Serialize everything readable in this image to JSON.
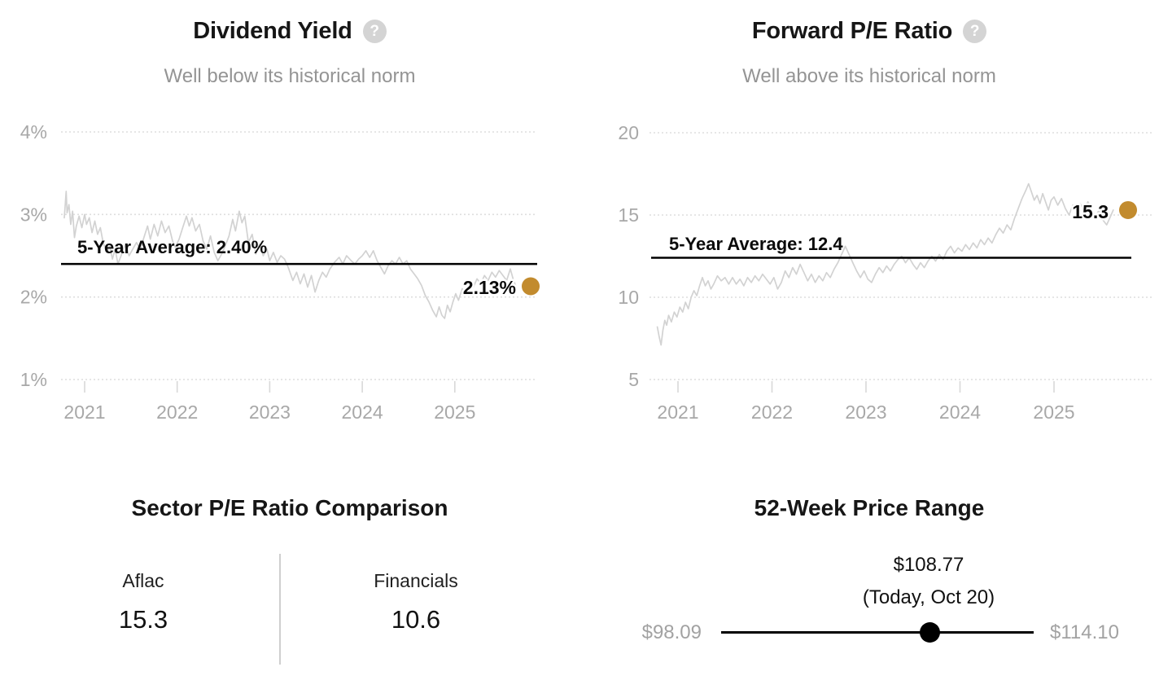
{
  "icons": {
    "help": "?"
  },
  "colors": {
    "background": "#ffffff",
    "accent_gold": "#C28B2E",
    "series_line": "#d2d2d2",
    "grid_line": "#dedede",
    "tick_mark": "#d8d8d8",
    "average_line": "#000000",
    "axis_text": "#a8a8a8",
    "muted_text": "#949494"
  },
  "chart_data": [
    {
      "type": "line",
      "title": "Dividend Yield",
      "subtitle": "Well below its historical norm",
      "ylabel": "Dividend Yield (%)",
      "ylim": [
        1,
        4
      ],
      "grid": "dotted-horizontal",
      "y_ticks": [
        {
          "label": "4%",
          "value": 4
        },
        {
          "label": "3%",
          "value": 3
        },
        {
          "label": "2%",
          "value": 2
        },
        {
          "label": "1%",
          "value": 1
        }
      ],
      "x_ticks": [
        {
          "label": "2021",
          "value": 2021
        },
        {
          "label": "2022",
          "value": 2022
        },
        {
          "label": "2023",
          "value": 2023
        },
        {
          "label": "2024",
          "value": 2024
        },
        {
          "label": "2025",
          "value": 2025
        }
      ],
      "average": {
        "label": "5-Year Average: 2.40%",
        "value": 2.4
      },
      "current": {
        "label": "2.13%",
        "value": 2.13
      },
      "points": [
        [
          2020.78,
          2.96
        ],
        [
          2020.8,
          3.28
        ],
        [
          2020.81,
          3.02
        ],
        [
          2020.83,
          3.12
        ],
        [
          2020.85,
          2.88
        ],
        [
          2020.87,
          3.04
        ],
        [
          2020.89,
          2.72
        ],
        [
          2020.91,
          2.86
        ],
        [
          2020.94,
          2.98
        ],
        [
          2020.97,
          2.84
        ],
        [
          2021.0,
          3.0
        ],
        [
          2021.02,
          2.88
        ],
        [
          2021.05,
          2.96
        ],
        [
          2021.08,
          2.78
        ],
        [
          2021.11,
          2.92
        ],
        [
          2021.14,
          2.76
        ],
        [
          2021.17,
          2.84
        ],
        [
          2021.2,
          2.66
        ],
        [
          2021.24,
          2.54
        ],
        [
          2021.27,
          2.62
        ],
        [
          2021.3,
          2.46
        ],
        [
          2021.33,
          2.58
        ],
        [
          2021.36,
          2.4
        ],
        [
          2021.4,
          2.52
        ],
        [
          2021.44,
          2.64
        ],
        [
          2021.48,
          2.5
        ],
        [
          2021.52,
          2.58
        ],
        [
          2021.56,
          2.66
        ],
        [
          2021.6,
          2.58
        ],
        [
          2021.64,
          2.72
        ],
        [
          2021.68,
          2.86
        ],
        [
          2021.71,
          2.7
        ],
        [
          2021.75,
          2.88
        ],
        [
          2021.79,
          2.74
        ],
        [
          2021.83,
          2.92
        ],
        [
          2021.87,
          2.78
        ],
        [
          2021.91,
          2.86
        ],
        [
          2021.95,
          2.68
        ],
        [
          2021.98,
          2.6
        ],
        [
          2022.02,
          2.7
        ],
        [
          2022.06,
          2.84
        ],
        [
          2022.1,
          2.98
        ],
        [
          2022.13,
          2.86
        ],
        [
          2022.16,
          2.96
        ],
        [
          2022.2,
          2.8
        ],
        [
          2022.24,
          2.88
        ],
        [
          2022.28,
          2.68
        ],
        [
          2022.32,
          2.58
        ],
        [
          2022.36,
          2.74
        ],
        [
          2022.4,
          2.54
        ],
        [
          2022.44,
          2.44
        ],
        [
          2022.48,
          2.52
        ],
        [
          2022.52,
          2.62
        ],
        [
          2022.56,
          2.74
        ],
        [
          2022.6,
          2.94
        ],
        [
          2022.63,
          2.8
        ],
        [
          2022.67,
          3.04
        ],
        [
          2022.7,
          2.9
        ],
        [
          2022.73,
          2.98
        ],
        [
          2022.77,
          2.66
        ],
        [
          2022.81,
          2.76
        ],
        [
          2022.85,
          2.52
        ],
        [
          2022.89,
          2.64
        ],
        [
          2022.93,
          2.5
        ],
        [
          2022.97,
          2.58
        ],
        [
          2023.0,
          2.44
        ],
        [
          2023.04,
          2.54
        ],
        [
          2023.08,
          2.42
        ],
        [
          2023.12,
          2.5
        ],
        [
          2023.16,
          2.46
        ],
        [
          2023.2,
          2.36
        ],
        [
          2023.25,
          2.2
        ],
        [
          2023.29,
          2.3
        ],
        [
          2023.33,
          2.16
        ],
        [
          2023.37,
          2.28
        ],
        [
          2023.41,
          2.12
        ],
        [
          2023.45,
          2.26
        ],
        [
          2023.49,
          2.06
        ],
        [
          2023.53,
          2.2
        ],
        [
          2023.57,
          2.3
        ],
        [
          2023.61,
          2.24
        ],
        [
          2023.65,
          2.34
        ],
        [
          2023.7,
          2.42
        ],
        [
          2023.75,
          2.48
        ],
        [
          2023.79,
          2.4
        ],
        [
          2023.83,
          2.5
        ],
        [
          2023.88,
          2.44
        ],
        [
          2023.92,
          2.4
        ],
        [
          2023.96,
          2.46
        ],
        [
          2024.0,
          2.5
        ],
        [
          2024.04,
          2.56
        ],
        [
          2024.08,
          2.48
        ],
        [
          2024.12,
          2.56
        ],
        [
          2024.16,
          2.44
        ],
        [
          2024.2,
          2.36
        ],
        [
          2024.24,
          2.28
        ],
        [
          2024.28,
          2.38
        ],
        [
          2024.32,
          2.44
        ],
        [
          2024.36,
          2.4
        ],
        [
          2024.4,
          2.48
        ],
        [
          2024.44,
          2.4
        ],
        [
          2024.48,
          2.44
        ],
        [
          2024.52,
          2.34
        ],
        [
          2024.56,
          2.28
        ],
        [
          2024.6,
          2.22
        ],
        [
          2024.64,
          2.14
        ],
        [
          2024.68,
          2.02
        ],
        [
          2024.72,
          1.94
        ],
        [
          2024.76,
          1.84
        ],
        [
          2024.8,
          1.76
        ],
        [
          2024.83,
          1.88
        ],
        [
          2024.86,
          1.78
        ],
        [
          2024.89,
          1.74
        ],
        [
          2024.92,
          1.9
        ],
        [
          2024.95,
          1.82
        ],
        [
          2024.98,
          1.94
        ],
        [
          2025.01,
          2.04
        ],
        [
          2025.04,
          1.96
        ],
        [
          2025.08,
          2.1
        ],
        [
          2025.12,
          2.04
        ],
        [
          2025.16,
          2.18
        ],
        [
          2025.2,
          2.12
        ],
        [
          2025.24,
          2.22
        ],
        [
          2025.28,
          2.16
        ],
        [
          2025.32,
          2.26
        ],
        [
          2025.36,
          2.2
        ],
        [
          2025.4,
          2.3
        ],
        [
          2025.44,
          2.24
        ],
        [
          2025.48,
          2.32
        ],
        [
          2025.52,
          2.26
        ],
        [
          2025.56,
          2.2
        ],
        [
          2025.6,
          2.34
        ],
        [
          2025.63,
          2.22
        ],
        [
          2025.66,
          2.13
        ]
      ]
    },
    {
      "type": "line",
      "title": "Forward P/E Ratio",
      "subtitle": "Well above its historical norm",
      "ylabel": "Forward P/E Ratio",
      "ylim": [
        5,
        20
      ],
      "grid": "dotted-horizontal",
      "y_ticks": [
        {
          "label": "20",
          "value": 20
        },
        {
          "label": "15",
          "value": 15
        },
        {
          "label": "10",
          "value": 10
        },
        {
          "label": "5",
          "value": 5
        }
      ],
      "x_ticks": [
        {
          "label": "2021",
          "value": 2021
        },
        {
          "label": "2022",
          "value": 2022
        },
        {
          "label": "2023",
          "value": 2023
        },
        {
          "label": "2024",
          "value": 2024
        },
        {
          "label": "2025",
          "value": 2025
        }
      ],
      "average": {
        "label": "5-Year Average: 12.4",
        "value": 12.4
      },
      "current": {
        "label": "15.3",
        "value": 15.3
      },
      "points": [
        [
          2020.78,
          8.2
        ],
        [
          2020.8,
          7.6
        ],
        [
          2020.82,
          7.1
        ],
        [
          2020.84,
          8.0
        ],
        [
          2020.86,
          8.6
        ],
        [
          2020.88,
          8.3
        ],
        [
          2020.9,
          8.9
        ],
        [
          2020.93,
          8.5
        ],
        [
          2020.96,
          9.1
        ],
        [
          2020.99,
          8.8
        ],
        [
          2021.02,
          9.4
        ],
        [
          2021.05,
          9.1
        ],
        [
          2021.08,
          9.7
        ],
        [
          2021.11,
          9.3
        ],
        [
          2021.14,
          10.0
        ],
        [
          2021.17,
          10.4
        ],
        [
          2021.2,
          10.1
        ],
        [
          2021.23,
          10.7
        ],
        [
          2021.26,
          11.2
        ],
        [
          2021.29,
          10.7
        ],
        [
          2021.32,
          11.0
        ],
        [
          2021.35,
          10.5
        ],
        [
          2021.38,
          10.8
        ],
        [
          2021.42,
          11.3
        ],
        [
          2021.46,
          11.0
        ],
        [
          2021.5,
          11.2
        ],
        [
          2021.54,
          10.8
        ],
        [
          2021.58,
          11.2
        ],
        [
          2021.62,
          10.8
        ],
        [
          2021.66,
          11.1
        ],
        [
          2021.7,
          10.7
        ],
        [
          2021.74,
          11.2
        ],
        [
          2021.78,
          10.9
        ],
        [
          2021.82,
          11.3
        ],
        [
          2021.86,
          11.0
        ],
        [
          2021.9,
          11.4
        ],
        [
          2021.94,
          11.1
        ],
        [
          2021.98,
          10.8
        ],
        [
          2022.02,
          11.2
        ],
        [
          2022.06,
          10.5
        ],
        [
          2022.1,
          10.9
        ],
        [
          2022.14,
          11.6
        ],
        [
          2022.18,
          11.2
        ],
        [
          2022.22,
          11.8
        ],
        [
          2022.26,
          11.4
        ],
        [
          2022.3,
          12.0
        ],
        [
          2022.34,
          11.5
        ],
        [
          2022.38,
          11.0
        ],
        [
          2022.42,
          11.4
        ],
        [
          2022.46,
          10.9
        ],
        [
          2022.5,
          11.3
        ],
        [
          2022.54,
          11.0
        ],
        [
          2022.58,
          11.5
        ],
        [
          2022.62,
          11.2
        ],
        [
          2022.66,
          11.7
        ],
        [
          2022.7,
          12.1
        ],
        [
          2022.74,
          12.6
        ],
        [
          2022.78,
          13.1
        ],
        [
          2022.82,
          12.6
        ],
        [
          2022.86,
          12.1
        ],
        [
          2022.9,
          11.6
        ],
        [
          2022.94,
          11.2
        ],
        [
          2022.98,
          11.6
        ],
        [
          2023.02,
          11.1
        ],
        [
          2023.06,
          10.9
        ],
        [
          2023.1,
          11.4
        ],
        [
          2023.14,
          11.8
        ],
        [
          2023.18,
          11.5
        ],
        [
          2023.22,
          11.9
        ],
        [
          2023.26,
          11.6
        ],
        [
          2023.3,
          12.0
        ],
        [
          2023.34,
          12.3
        ],
        [
          2023.38,
          12.5
        ],
        [
          2023.42,
          12.1
        ],
        [
          2023.46,
          12.4
        ],
        [
          2023.5,
          12.0
        ],
        [
          2023.54,
          11.7
        ],
        [
          2023.58,
          12.1
        ],
        [
          2023.62,
          11.8
        ],
        [
          2023.66,
          12.2
        ],
        [
          2023.7,
          12.5
        ],
        [
          2023.74,
          12.2
        ],
        [
          2023.78,
          12.6
        ],
        [
          2023.82,
          12.3
        ],
        [
          2023.86,
          12.8
        ],
        [
          2023.9,
          13.1
        ],
        [
          2023.94,
          12.7
        ],
        [
          2023.98,
          13.0
        ],
        [
          2024.02,
          12.8
        ],
        [
          2024.06,
          13.2
        ],
        [
          2024.1,
          12.9
        ],
        [
          2024.14,
          13.3
        ],
        [
          2024.18,
          13.0
        ],
        [
          2024.22,
          13.5
        ],
        [
          2024.26,
          13.2
        ],
        [
          2024.3,
          13.6
        ],
        [
          2024.34,
          13.3
        ],
        [
          2024.38,
          13.8
        ],
        [
          2024.42,
          14.2
        ],
        [
          2024.46,
          13.9
        ],
        [
          2024.5,
          14.4
        ],
        [
          2024.54,
          14.1
        ],
        [
          2024.58,
          14.8
        ],
        [
          2024.62,
          15.4
        ],
        [
          2024.66,
          16.0
        ],
        [
          2024.7,
          16.5
        ],
        [
          2024.73,
          16.9
        ],
        [
          2024.76,
          16.4
        ],
        [
          2024.79,
          15.9
        ],
        [
          2024.82,
          16.2
        ],
        [
          2024.85,
          15.7
        ],
        [
          2024.88,
          16.3
        ],
        [
          2024.91,
          15.8
        ],
        [
          2024.94,
          15.3
        ],
        [
          2024.97,
          15.9
        ],
        [
          2025.0,
          16.1
        ],
        [
          2025.04,
          15.6
        ],
        [
          2025.08,
          16.0
        ],
        [
          2025.12,
          15.4
        ],
        [
          2025.16,
          15.0
        ],
        [
          2025.2,
          15.6
        ],
        [
          2025.24,
          15.2
        ],
        [
          2025.28,
          15.7
        ],
        [
          2025.32,
          15.3
        ],
        [
          2025.36,
          15.8
        ],
        [
          2025.4,
          15.4
        ],
        [
          2025.44,
          14.9
        ],
        [
          2025.48,
          15.3
        ],
        [
          2025.52,
          14.7
        ],
        [
          2025.56,
          14.4
        ],
        [
          2025.6,
          14.9
        ],
        [
          2025.63,
          15.3
        ]
      ]
    },
    {
      "type": "table",
      "title": "Sector P/E Ratio Comparison",
      "columns": [
        {
          "label": "Aflac",
          "value": "15.3"
        },
        {
          "label": "Financials",
          "value": "10.6"
        }
      ]
    },
    {
      "type": "range",
      "title": "52-Week Price Range",
      "current_label": "$108.77",
      "current_sublabel": "(Today, Oct 20)",
      "min_label": "$98.09",
      "max_label": "$114.10",
      "min": 98.09,
      "max": 114.1,
      "current": 108.77
    }
  ]
}
